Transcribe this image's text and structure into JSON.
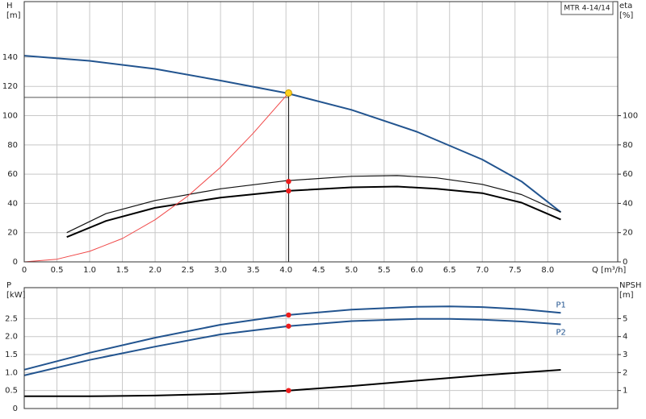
{
  "chart_data": [
    {
      "type": "line",
      "title": "MTR 4-14/14",
      "ylabel": "H",
      "yunit": "[m]",
      "y2label": "eta",
      "y2unit": "[%]",
      "xlabel": "Q [m³/h]",
      "xlim": [
        0,
        9.07
      ],
      "xticks": [
        0,
        0.5,
        {
          "value": 1,
          "label": "1.0"
        },
        1.5,
        {
          "value": 2,
          "label": "2.0"
        },
        2.5,
        {
          "value": 3,
          "label": "3.0"
        },
        3.5,
        {
          "value": 4,
          "label": "4.0"
        },
        4.5,
        {
          "value": 5,
          "label": "5.0"
        },
        5.5,
        {
          "value": 6,
          "label": "6.0"
        },
        6.5,
        {
          "value": 7,
          "label": "7.0"
        },
        7.5,
        {
          "value": 8,
          "label": "8.0"
        }
      ],
      "ylim": [
        0,
        178
      ],
      "yticks": [
        0,
        20,
        40,
        60,
        80,
        100,
        120,
        140
      ],
      "y2lim": [
        0,
        178
      ],
      "y2ticks": [
        0,
        20,
        40,
        60,
        80,
        100
      ],
      "grid": true,
      "series": [
        {
          "color": "#22548f",
          "x": [
            0,
            1,
            2,
            3,
            4,
            5,
            6,
            7,
            7.6,
            8.2
          ],
          "values": [
            141,
            137.5,
            132,
            124,
            115.5,
            104,
            89,
            70,
            55,
            34
          ]
        },
        {
          "color": "#111111",
          "axis": "y2",
          "x": [
            0.65,
            1.25,
            2,
            3,
            4,
            5,
            5.7,
            6.3,
            7,
            7.6,
            8.2
          ],
          "values": [
            20,
            33,
            42,
            50,
            55.5,
            58.5,
            59,
            57.5,
            53,
            46,
            34
          ]
        },
        {
          "color": "#000000",
          "axis": "y2",
          "x": [
            0.65,
            1.25,
            2,
            3,
            4,
            5,
            5.7,
            6.3,
            7,
            7.6,
            8.2
          ],
          "values": [
            17,
            28,
            37,
            44,
            48.5,
            51,
            51.5,
            50,
            47,
            40.5,
            29
          ]
        },
        {
          "color": "#f04848",
          "x": [
            0,
            0.5,
            1,
            1.5,
            2,
            2.5,
            3,
            3.5,
            4.04
          ],
          "values": [
            0,
            1.8,
            7.2,
            16,
            28.8,
            45,
            64.7,
            88,
            115.5
          ]
        }
      ],
      "guides": [
        {
          "color": "#555555",
          "x": [
            0,
            4.04
          ],
          "values": [
            112.5,
            112.5
          ]
        },
        {
          "color": "#000000",
          "x": [
            4.04,
            4.04
          ],
          "values": [
            0,
            115.5
          ]
        }
      ],
      "markers": [
        {
          "color": "#ffd21f",
          "x": 4.04,
          "value": 115.5
        },
        {
          "color": "#ee1c1c",
          "axis": "y2",
          "x": 4.04,
          "value": 55
        },
        {
          "color": "#ee1c1c",
          "axis": "y2",
          "x": 4.04,
          "value": 48.5
        }
      ]
    },
    {
      "type": "line",
      "ylabel": "P",
      "yunit": "[kW]",
      "y2label": "NPSH",
      "y2unit": "[m]",
      "xlim": [
        0,
        9.07
      ],
      "xticks": [
        0,
        0.5,
        1,
        1.5,
        2,
        2.5,
        3,
        3.5,
        4,
        4.5,
        5,
        5.5,
        6,
        6.5,
        7,
        7.5,
        8
      ],
      "ylim": [
        0,
        3.36
      ],
      "yticks": [
        0,
        0.5,
        {
          "value": 1,
          "label": "1.0"
        },
        1.5,
        {
          "value": 2,
          "label": "2.0"
        },
        2.5
      ],
      "y2lim": [
        0,
        6.72
      ],
      "y2ticks": [
        1,
        2,
        3,
        4,
        5
      ],
      "grid": true,
      "series": [
        {
          "name": "P1",
          "color": "#22548f",
          "x": [
            0,
            1,
            2,
            3,
            4.04,
            5,
            6,
            6.5,
            7,
            7.6,
            8.2
          ],
          "values": [
            1.08,
            1.55,
            1.97,
            2.33,
            2.6,
            2.75,
            2.83,
            2.84,
            2.82,
            2.76,
            2.66
          ]
        },
        {
          "name": "P2",
          "color": "#22548f",
          "x": [
            0,
            1,
            2,
            3,
            4.04,
            5,
            6,
            6.5,
            7,
            7.6,
            8.2
          ],
          "values": [
            0.92,
            1.35,
            1.72,
            2.06,
            2.29,
            2.43,
            2.49,
            2.49,
            2.47,
            2.42,
            2.34
          ]
        },
        {
          "color": "#000000",
          "axis": "y2",
          "x": [
            0,
            1,
            2,
            3,
            4.04,
            5,
            6,
            7,
            8.2
          ],
          "values": [
            0.68,
            0.68,
            0.72,
            0.82,
            1.0,
            1.25,
            1.55,
            1.85,
            2.15
          ]
        }
      ],
      "markers": [
        {
          "color": "#ee1c1c",
          "x": 4.04,
          "value": 2.6
        },
        {
          "color": "#ee1c1c",
          "x": 4.04,
          "value": 2.29
        },
        {
          "color": "#ee1c1c",
          "axis": "y2",
          "x": 4.04,
          "value": 1.0
        }
      ]
    }
  ]
}
